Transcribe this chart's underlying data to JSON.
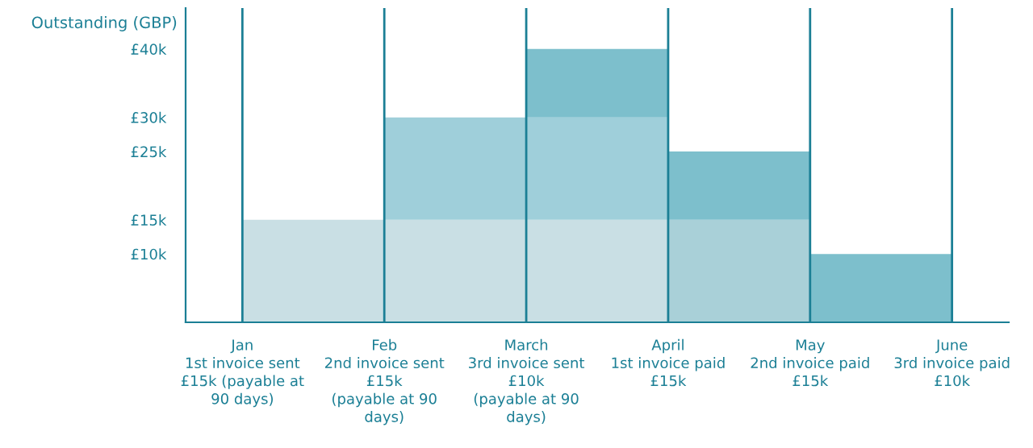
{
  "chart_data": {
    "type": "bar",
    "stacked": true,
    "ylabel": "Outstanding (GBP)",
    "categories": [
      "Jan\n1st invoice sent\n£15k (payable at\n90 days)",
      "Feb\n2nd invoice sent\n£15k\n(payable at 90\ndays)",
      "March\n3rd invoice sent\n£10k\n(payable at 90\ndays)",
      "April\n1st invoice paid\n£15k",
      "May\n2nd invoice paid\n£15k",
      "June\n3rd invoice paid\n£10k"
    ],
    "series": [
      {
        "colors": [
          "#c9dfe4",
          "#c9dfe4",
          "#c9dfe4",
          "#a9d0d8",
          "#7dbfcc",
          "#7dbfcc"
        ],
        "values": [
          15,
          15,
          15,
          15,
          10,
          null
        ]
      },
      {
        "colors": [
          "#9fcfda",
          "#9fcfda",
          "#9fcfda",
          "#7dbfcc",
          "#7dbfcc",
          "#7dbfcc"
        ],
        "values": [
          0,
          15,
          15,
          10,
          0,
          null
        ]
      },
      {
        "colors": [
          "#7dbfcc",
          "#7dbfcc",
          "#7dbfcc",
          "#7dbfcc",
          "#7dbfcc",
          "#7dbfcc"
        ],
        "values": [
          0,
          0,
          10,
          0,
          0,
          null
        ]
      }
    ],
    "ylim": [
      0,
      46
    ],
    "yticks": [
      {
        "value": 10,
        "label": "£10k"
      },
      {
        "value": 15,
        "label": "£15k"
      },
      {
        "value": 25,
        "label": "£25k"
      },
      {
        "value": 30,
        "label": "£30k"
      },
      {
        "value": 40,
        "label": "£40k"
      }
    ],
    "grid": "x"
  }
}
